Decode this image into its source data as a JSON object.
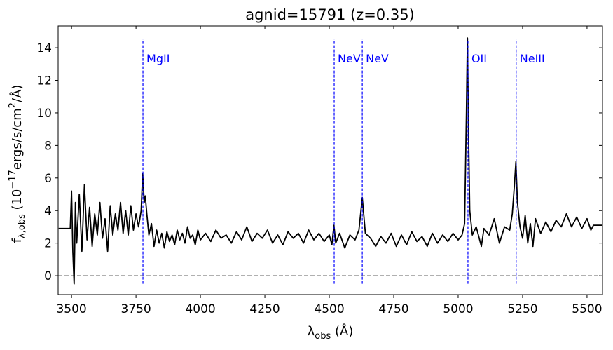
{
  "chart_data": {
    "type": "line",
    "title": "agnid=15791 (z=0.35)",
    "xlabel": [
      {
        "text": "λ"
      },
      {
        "text": "obs",
        "shift": "sub"
      },
      {
        "text": " (Å)"
      }
    ],
    "ylabel": [
      {
        "text": "f"
      },
      {
        "text": "λ,obs",
        "shift": "sub"
      },
      {
        "text": " (10"
      },
      {
        "text": "−17",
        "shift": "sup"
      },
      {
        "text": "ergs/s/cm"
      },
      {
        "text": "2",
        "shift": "sup"
      },
      {
        "text": "/Å)"
      }
    ],
    "color": "#000000",
    "x": [
      3450,
      3495,
      3500,
      3505,
      3510,
      3515,
      3520,
      3530,
      3540,
      3550,
      3560,
      3570,
      3580,
      3590,
      3600,
      3610,
      3620,
      3630,
      3640,
      3650,
      3660,
      3670,
      3680,
      3690,
      3700,
      3710,
      3720,
      3730,
      3740,
      3750,
      3760,
      3770,
      3776,
      3782,
      3786,
      3792,
      3800,
      3810,
      3820,
      3830,
      3840,
      3850,
      3860,
      3870,
      3880,
      3890,
      3900,
      3910,
      3920,
      3930,
      3940,
      3950,
      3960,
      3970,
      3980,
      3990,
      4000,
      4020,
      4040,
      4060,
      4080,
      4100,
      4120,
      4140,
      4160,
      4180,
      4200,
      4220,
      4240,
      4260,
      4280,
      4300,
      4320,
      4340,
      4360,
      4380,
      4400,
      4420,
      4440,
      4460,
      4480,
      4500,
      4510,
      4518,
      4525,
      4540,
      4560,
      4580,
      4600,
      4615,
      4628,
      4640,
      4660,
      4680,
      4700,
      4720,
      4740,
      4760,
      4780,
      4800,
      4820,
      4840,
      4860,
      4880,
      4900,
      4920,
      4940,
      4960,
      4980,
      5000,
      5015,
      5025,
      5032,
      5036,
      5040,
      5045,
      5055,
      5070,
      5090,
      5100,
      5120,
      5140,
      5160,
      5180,
      5200,
      5210,
      5218,
      5224,
      5230,
      5240,
      5250,
      5260,
      5270,
      5280,
      5290,
      5300,
      5320,
      5340,
      5360,
      5380,
      5400,
      5420,
      5440,
      5460,
      5480,
      5500,
      5515,
      5525,
      5560
    ],
    "values": [
      2.9,
      2.9,
      5.2,
      1.5,
      -0.5,
      4.5,
      2.0,
      5.0,
      1.5,
      5.6,
      2.2,
      4.2,
      1.8,
      3.8,
      2.5,
      4.5,
      2.3,
      3.5,
      1.5,
      4.3,
      2.5,
      3.8,
      2.8,
      4.5,
      2.6,
      4.0,
      2.5,
      4.3,
      2.8,
      3.8,
      3.0,
      4.0,
      6.3,
      4.5,
      4.9,
      3.8,
      2.5,
      3.2,
      1.8,
      2.8,
      2.0,
      2.6,
      1.7,
      2.7,
      2.1,
      2.5,
      1.9,
      2.8,
      2.2,
      2.6,
      2.0,
      3.0,
      2.3,
      2.5,
      1.9,
      2.8,
      2.2,
      2.6,
      2.1,
      2.8,
      2.3,
      2.5,
      2.0,
      2.7,
      2.2,
      3.0,
      2.1,
      2.6,
      2.3,
      2.8,
      2.0,
      2.5,
      1.9,
      2.7,
      2.3,
      2.6,
      2.0,
      2.8,
      2.2,
      2.6,
      2.1,
      2.5,
      1.9,
      3.1,
      2.0,
      2.6,
      1.7,
      2.5,
      2.2,
      2.8,
      4.8,
      2.6,
      2.3,
      1.8,
      2.4,
      2.0,
      2.6,
      1.8,
      2.5,
      1.9,
      2.7,
      2.1,
      2.4,
      1.8,
      2.6,
      2.0,
      2.5,
      2.1,
      2.6,
      2.2,
      2.5,
      3.2,
      10.0,
      14.6,
      9.0,
      4.0,
      2.5,
      3.0,
      1.8,
      2.9,
      2.5,
      3.5,
      2.0,
      3.0,
      2.8,
      3.8,
      5.5,
      7.0,
      4.5,
      3.0,
      2.3,
      3.7,
      2.0,
      3.2,
      1.8,
      3.5,
      2.6,
      3.3,
      2.7,
      3.4,
      3.0,
      3.8,
      3.0,
      3.6,
      2.9,
      3.5,
      2.8,
      3.1,
      3.1
    ],
    "lines": [
      {
        "x": 3777,
        "label": "MgII"
      },
      {
        "x": 4519,
        "label": "NeV"
      },
      {
        "x": 4628,
        "label": "NeV"
      },
      {
        "x": 5038,
        "label": "OII"
      },
      {
        "x": 5225,
        "label": "NeIII"
      }
    ],
    "line_color": "#0000ff",
    "line_span": [
      -0.5,
      14.5
    ],
    "hline": {
      "y": 0,
      "color": "#808080"
    },
    "xlim": [
      3448,
      5560
    ],
    "ylim": [
      -1.16,
      15.34
    ],
    "xticks": [
      3500,
      3750,
      4000,
      4250,
      4500,
      4750,
      5000,
      5250,
      5500
    ],
    "yticks": [
      0,
      2,
      4,
      6,
      8,
      10,
      12,
      14
    ]
  }
}
